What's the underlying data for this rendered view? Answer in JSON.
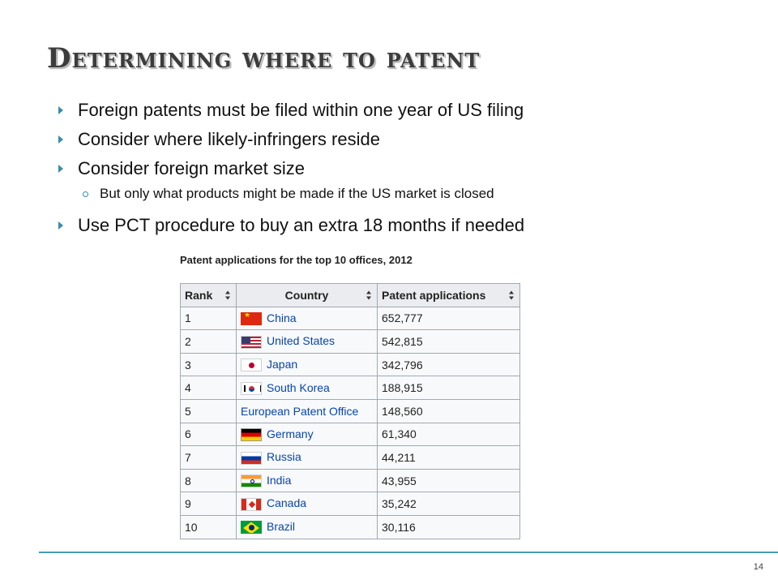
{
  "slide": {
    "title": "Determining where to patent",
    "bullets": [
      "Foreign patents must be filed within one year of US filing",
      "Consider where likely-infringers reside",
      "Consider foreign market size",
      "Use PCT procedure to buy an extra 18 months if needed"
    ],
    "sub_bullet": "But only what products might be made if the US market is closed",
    "page_number": "14"
  },
  "table": {
    "caption": "Patent applications for the top 10 offices, 2012",
    "headers": {
      "rank": "Rank",
      "country": "Country",
      "applications": "Patent applications"
    },
    "rows": [
      {
        "rank": "1",
        "country": "China",
        "flag": "china-flag-icon",
        "applications": "652,777"
      },
      {
        "rank": "2",
        "country": "United States",
        "flag": "us-flag-icon",
        "applications": "542,815"
      },
      {
        "rank": "3",
        "country": "Japan",
        "flag": "japan-flag-icon",
        "applications": "342,796"
      },
      {
        "rank": "4",
        "country": "South Korea",
        "flag": "south-korea-flag-icon",
        "applications": "188,915"
      },
      {
        "rank": "5",
        "country": "European Patent Office",
        "flag": "",
        "applications": "148,560"
      },
      {
        "rank": "6",
        "country": "Germany",
        "flag": "germany-flag-icon",
        "applications": "61,340"
      },
      {
        "rank": "7",
        "country": "Russia",
        "flag": "russia-flag-icon",
        "applications": "44,211"
      },
      {
        "rank": "8",
        "country": "India",
        "flag": "india-flag-icon",
        "applications": "43,955"
      },
      {
        "rank": "9",
        "country": "Canada",
        "flag": "canada-flag-icon",
        "applications": "35,242"
      },
      {
        "rank": "10",
        "country": "Brazil",
        "flag": "brazil-flag-icon",
        "applications": "30,116"
      }
    ]
  },
  "colors": {
    "accent": "#3a8ea8",
    "link": "#0645ad",
    "header_bg": "#eaecf0",
    "cell_bg": "#f8f9fa"
  }
}
